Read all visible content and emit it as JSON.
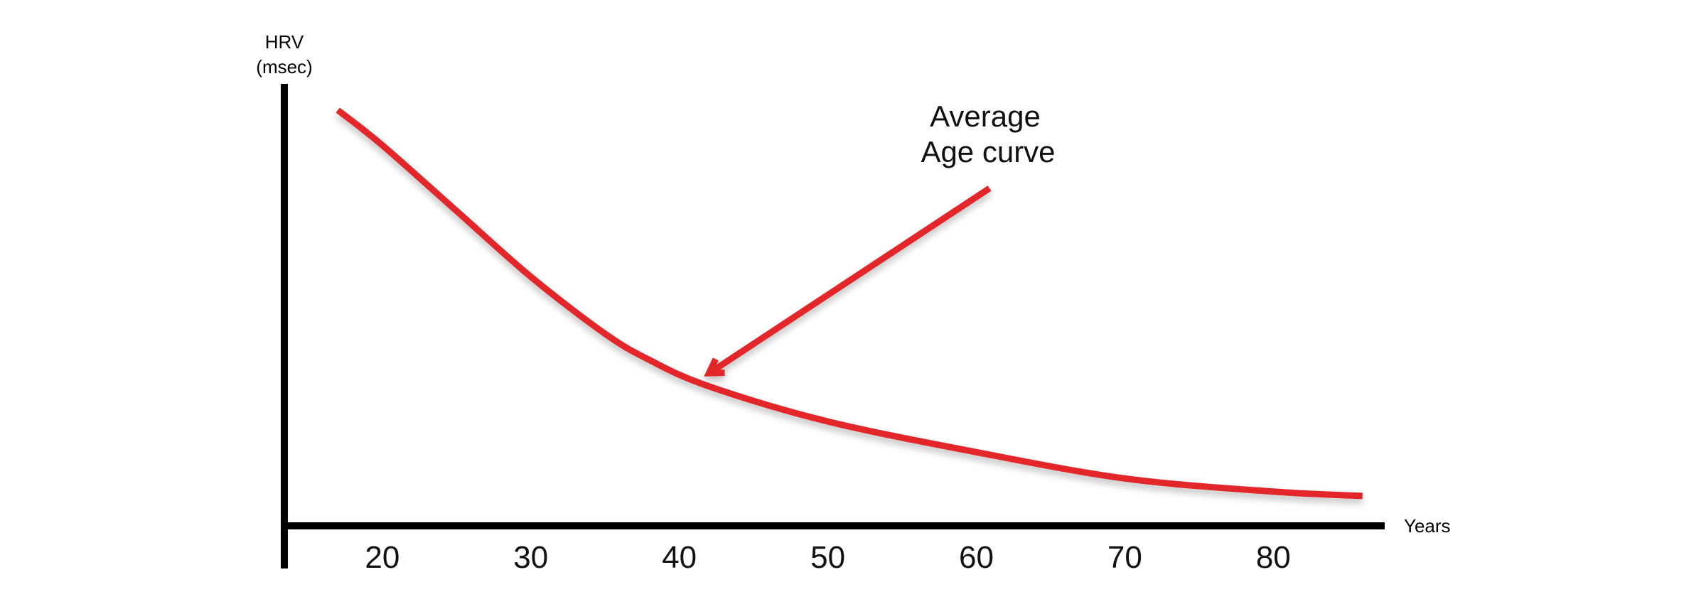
{
  "chart_data": {
    "type": "line",
    "title": "",
    "xlabel": "Years",
    "ylabel_lines": [
      "HRV",
      "(msec)"
    ],
    "xlim": [
      13.4,
      87.5
    ],
    "ylim": [
      0,
      100
    ],
    "x_ticks": [
      20,
      30,
      40,
      50,
      60,
      70,
      80
    ],
    "y_ticks": [],
    "grid": false,
    "legend": "none",
    "series": [
      {
        "color": "#e3262b",
        "x": [
          17,
          20,
          25,
          30,
          35,
          38,
          42,
          50,
          60,
          70,
          80,
          86
        ],
        "y": [
          94,
          86,
          71,
          56,
          43,
          37,
          31,
          23,
          16,
          10,
          7,
          6
        ]
      }
    ],
    "annotations": [
      {
        "lines": [
          "Average",
          "Age curve"
        ],
        "points_to": {
          "x": 42,
          "y": 34
        },
        "color": "#e3262b"
      }
    ]
  }
}
